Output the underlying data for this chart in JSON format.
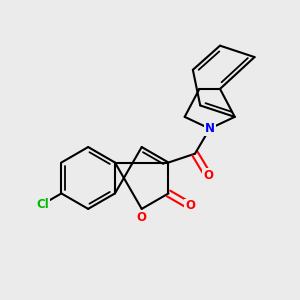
{
  "background_color": "#ebebeb",
  "bond_color": "#000000",
  "atom_colors": {
    "Cl": "#00bb00",
    "O": "#ff0000",
    "N": "#0000ff",
    "C": "#000000"
  },
  "figsize": [
    3.0,
    3.0
  ],
  "dpi": 100
}
